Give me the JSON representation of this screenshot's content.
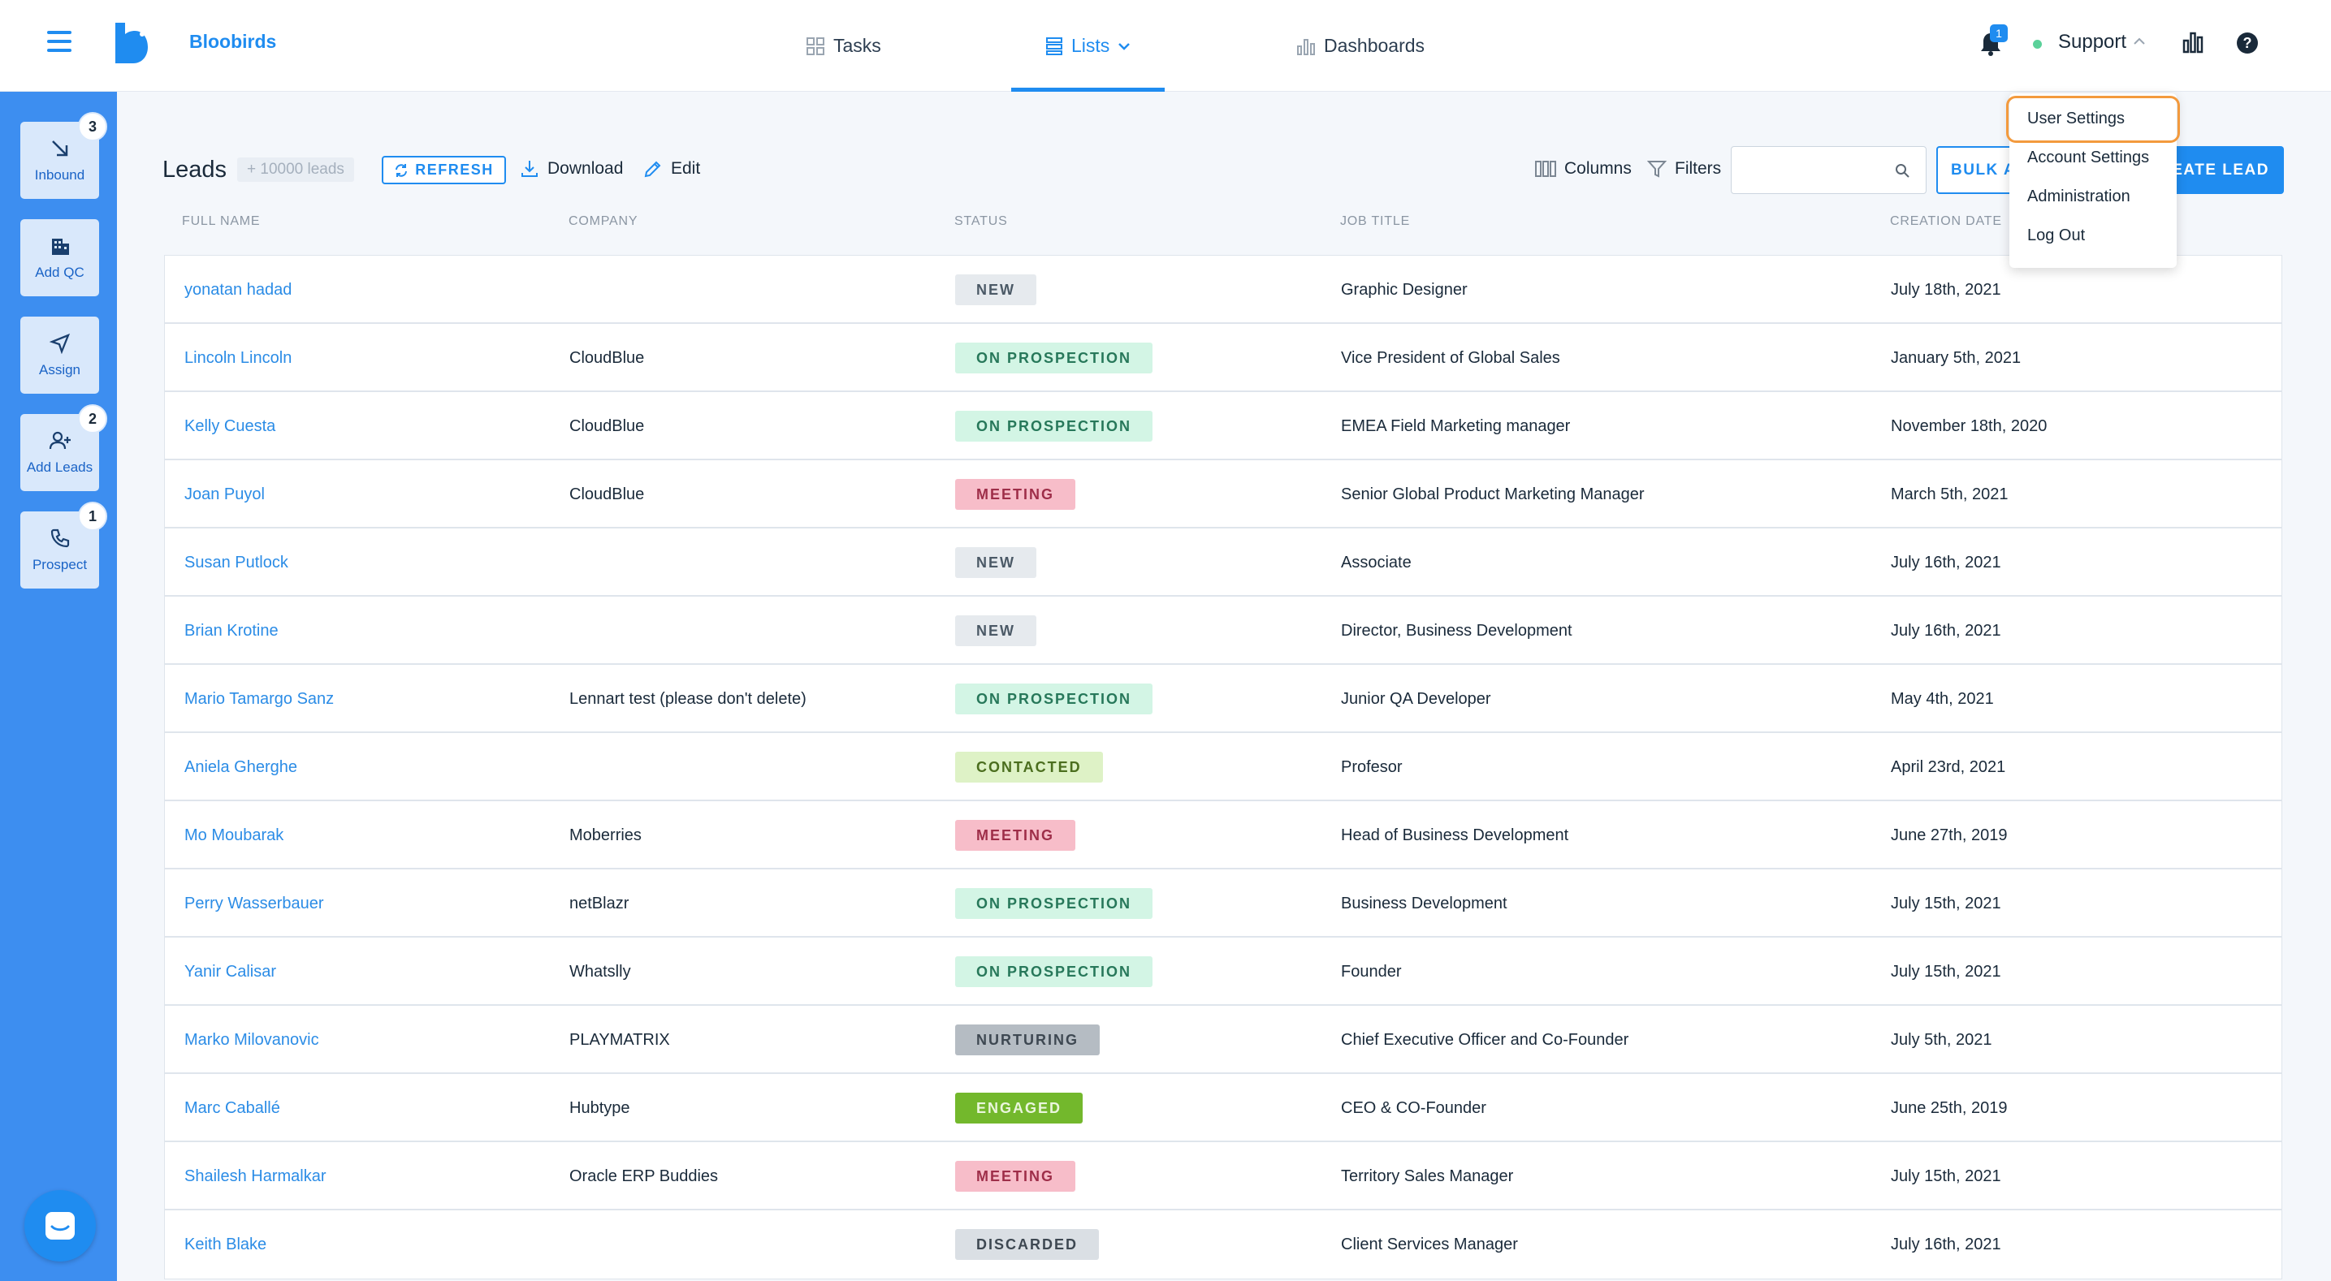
{
  "header": {
    "brand": "Bloobirds",
    "nav": {
      "tasks": "Tasks",
      "lists": "Lists",
      "dashboards": "Dashboards"
    },
    "notifications_count": "1",
    "user_menu_label": "Support",
    "help_glyph": "?"
  },
  "sidebar": {
    "items": [
      {
        "label": "Inbound",
        "badge": "3",
        "icon": "arrow-down-right-icon"
      },
      {
        "label": "Add QC",
        "badge": "",
        "icon": "building-icon"
      },
      {
        "label": "Assign",
        "badge": "",
        "icon": "send-icon"
      },
      {
        "label": "Add Leads",
        "badge": "2",
        "icon": "add-user-icon"
      },
      {
        "label": "Prospect",
        "badge": "1",
        "icon": "phone-icon"
      }
    ]
  },
  "toolbar": {
    "title": "Leads",
    "count": "+ 10000 leads",
    "refresh": "REFRESH",
    "download": "Download",
    "edit": "Edit",
    "columns": "Columns",
    "filters": "Filters",
    "search_value": "",
    "bulk": "BULK A",
    "create": "EATE LEAD"
  },
  "table": {
    "headers": [
      "FULL NAME",
      "COMPANY",
      "STATUS",
      "JOB TITLE",
      "CREATION DATE"
    ],
    "rows": [
      {
        "name": "yonatan hadad",
        "company": "",
        "status": "NEW",
        "job": "Graphic Designer",
        "date": "July 18th, 2021"
      },
      {
        "name": "Lincoln Lincoln",
        "company": "CloudBlue",
        "status": "ON PROSPECTION",
        "job": "Vice President of Global Sales",
        "date": "January 5th, 2021"
      },
      {
        "name": "Kelly Cuesta",
        "company": "CloudBlue",
        "status": "ON PROSPECTION",
        "job": "EMEA Field Marketing manager",
        "date": "November 18th, 2020"
      },
      {
        "name": "Joan Puyol",
        "company": "CloudBlue",
        "status": "MEETING",
        "job": "Senior Global Product Marketing Manager",
        "date": "March 5th, 2021"
      },
      {
        "name": "Susan Putlock",
        "company": "",
        "status": "NEW",
        "job": "Associate",
        "date": "July 16th, 2021"
      },
      {
        "name": "Brian Krotine",
        "company": "",
        "status": "NEW",
        "job": "Director, Business Development",
        "date": "July 16th, 2021"
      },
      {
        "name": "Mario Tamargo Sanz",
        "company": "Lennart test (please don't delete)",
        "status": "ON PROSPECTION",
        "job": "Junior QA Developer",
        "date": "May 4th, 2021"
      },
      {
        "name": "Aniela Gherghe",
        "company": "",
        "status": "CONTACTED",
        "job": "Profesor",
        "date": "April 23rd, 2021"
      },
      {
        "name": "Mo Moubarak",
        "company": "Moberries",
        "status": "MEETING",
        "job": "Head of Business Development",
        "date": "June 27th, 2019"
      },
      {
        "name": "Perry Wasserbauer",
        "company": "netBlazr",
        "status": "ON PROSPECTION",
        "job": "Business Development",
        "date": "July 15th, 2021"
      },
      {
        "name": "Yanir Calisar",
        "company": "Whatslly",
        "status": "ON PROSPECTION",
        "job": "Founder",
        "date": "July 15th, 2021"
      },
      {
        "name": "Marko Milovanovic",
        "company": "PLAYMATRIX",
        "status": "NURTURING",
        "job": "Chief Executive Officer and Co-Founder",
        "date": "July 5th, 2021"
      },
      {
        "name": "Marc Caballé",
        "company": "Hubtype",
        "status": "ENGAGED",
        "job": "CEO & CO-Founder",
        "date": "June 25th, 2019"
      },
      {
        "name": "Shailesh Harmalkar",
        "company": "Oracle ERP Buddies",
        "status": "MEETING",
        "job": "Territory Sales Manager",
        "date": "July 15th, 2021"
      },
      {
        "name": "Keith Blake",
        "company": "",
        "status": "DISCARDED",
        "job": "Client Services Manager",
        "date": "July 16th, 2021"
      }
    ]
  },
  "status_colors": {
    "NEW": {
      "bg": "#e6eaee",
      "fg": "#4b5966"
    },
    "ON PROSPECTION": {
      "bg": "#d3f5e5",
      "fg": "#27785a"
    },
    "MEETING": {
      "bg": "#f7bdc9",
      "fg": "#9e2e49"
    },
    "CONTACTED": {
      "bg": "#def2c6",
      "fg": "#4b6e1e"
    },
    "NURTURING": {
      "bg": "#b5bcc3",
      "fg": "#3e4852"
    },
    "ENGAGED": {
      "bg": "#73b82c",
      "fg": "#eaf6dc"
    },
    "DISCARDED": {
      "bg": "#dadfe4",
      "fg": "#3e4852"
    }
  },
  "user_dropdown": {
    "items": [
      "User Settings",
      "Account Settings",
      "Administration",
      "Log Out"
    ],
    "highlighted": "User Settings"
  },
  "colors": {
    "accent": "#1f8cf0",
    "sidebar": "#3d8ef0",
    "highlight_outline": "#f39a3d"
  }
}
